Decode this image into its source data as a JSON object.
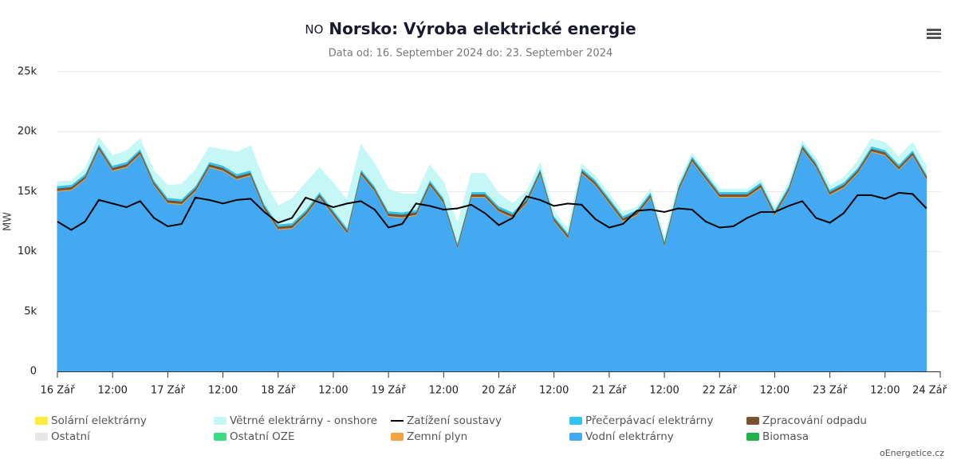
{
  "chart_data": {
    "type": "stacked_area",
    "title_code": "NO",
    "title": "Norsko: Výroba elektrické energie",
    "subtitle": "Data od: 16. September 2024 do: 23. September 2024",
    "ylabel": "MW",
    "credit": "oEnergetice.cz",
    "ylim": [
      0,
      25000
    ],
    "yticks": [
      0,
      {
        "value": 5000,
        "label": "5k"
      },
      {
        "value": 10000,
        "label": "10k"
      },
      {
        "value": 15000,
        "label": "15k"
      },
      {
        "value": 20000,
        "label": "20k"
      },
      {
        "value": 25000,
        "label": "25k"
      }
    ],
    "xlim": [
      "2024-09-16 00:00",
      "2024-09-24 00:00"
    ],
    "xticks": [
      {
        "value": "2024-09-16 00:00",
        "label": "16 Zář"
      },
      {
        "value": "2024-09-16 12:00",
        "label": "12:00"
      },
      {
        "value": "2024-09-17 00:00",
        "label": "17 Zář"
      },
      {
        "value": "2024-09-17 12:00",
        "label": "12:00"
      },
      {
        "value": "2024-09-18 00:00",
        "label": "18 Zář"
      },
      {
        "value": "2024-09-18 12:00",
        "label": "12:00"
      },
      {
        "value": "2024-09-19 00:00",
        "label": "19 Zář"
      },
      {
        "value": "2024-09-19 12:00",
        "label": "12:00"
      },
      {
        "value": "2024-09-20 00:00",
        "label": "20 Zář"
      },
      {
        "value": "2024-09-20 12:00",
        "label": "12:00"
      },
      {
        "value": "2024-09-21 00:00",
        "label": "21 Zář"
      },
      {
        "value": "2024-09-21 12:00",
        "label": "12:00"
      },
      {
        "value": "2024-09-22 00:00",
        "label": "22 Zář"
      },
      {
        "value": "2024-09-22 12:00",
        "label": "12:00"
      },
      {
        "value": "2024-09-23 00:00",
        "label": "23 Zář"
      },
      {
        "value": "2024-09-23 12:00",
        "label": "12:00"
      },
      {
        "value": "2024-09-24 00:00",
        "label": "24 Zář"
      }
    ],
    "grid": true,
    "x": [
      "2024-09-16 00:00",
      "2024-09-16 03:00",
      "2024-09-16 06:00",
      "2024-09-16 09:00",
      "2024-09-16 12:00",
      "2024-09-16 15:00",
      "2024-09-16 18:00",
      "2024-09-16 21:00",
      "2024-09-17 00:00",
      "2024-09-17 03:00",
      "2024-09-17 06:00",
      "2024-09-17 09:00",
      "2024-09-17 12:00",
      "2024-09-17 15:00",
      "2024-09-17 18:00",
      "2024-09-17 21:00",
      "2024-09-18 00:00",
      "2024-09-18 03:00",
      "2024-09-18 06:00",
      "2024-09-18 09:00",
      "2024-09-18 12:00",
      "2024-09-18 15:00",
      "2024-09-18 18:00",
      "2024-09-18 21:00",
      "2024-09-19 00:00",
      "2024-09-19 03:00",
      "2024-09-19 06:00",
      "2024-09-19 09:00",
      "2024-09-19 12:00",
      "2024-09-19 15:00",
      "2024-09-19 18:00",
      "2024-09-19 21:00",
      "2024-09-20 00:00",
      "2024-09-20 03:00",
      "2024-09-20 06:00",
      "2024-09-20 09:00",
      "2024-09-20 12:00",
      "2024-09-20 15:00",
      "2024-09-20 18:00",
      "2024-09-20 21:00",
      "2024-09-21 00:00",
      "2024-09-21 03:00",
      "2024-09-21 06:00",
      "2024-09-21 09:00",
      "2024-09-21 12:00",
      "2024-09-21 15:00",
      "2024-09-21 18:00",
      "2024-09-21 21:00",
      "2024-09-22 00:00",
      "2024-09-22 03:00",
      "2024-09-22 06:00",
      "2024-09-22 09:00",
      "2024-09-22 12:00",
      "2024-09-22 15:00",
      "2024-09-22 18:00",
      "2024-09-22 21:00",
      "2024-09-23 00:00",
      "2024-09-23 03:00",
      "2024-09-23 06:00",
      "2024-09-23 09:00",
      "2024-09-23 12:00",
      "2024-09-23 15:00",
      "2024-09-23 18:00",
      "2024-09-23 21:00"
    ],
    "series": [
      {
        "name": "Solární elektrárny",
        "color": "#ffeb3b",
        "kind": "area",
        "values": [
          0,
          0,
          0,
          0,
          0,
          0,
          0,
          0,
          0,
          0,
          0,
          0,
          0,
          0,
          0,
          0,
          0,
          0,
          0,
          0,
          0,
          0,
          0,
          0,
          0,
          0,
          0,
          0,
          0,
          0,
          0,
          0,
          0,
          0,
          0,
          0,
          0,
          0,
          0,
          0,
          0,
          0,
          0,
          0,
          0,
          0,
          0,
          0,
          0,
          0,
          0,
          0,
          0,
          0,
          0,
          0,
          0,
          0,
          0,
          0,
          0,
          0,
          0,
          0
        ]
      },
      {
        "name": "Větrné elektrárny - onshore",
        "color": "#c4f7f5",
        "kind": "area",
        "values": [
          300,
          300,
          400,
          500,
          800,
          900,
          800,
          700,
          1000,
          1200,
          1300,
          1200,
          1300,
          1800,
          2000,
          1800,
          1500,
          2000,
          2200,
          2000,
          2200,
          2300,
          2000,
          1800,
          1800,
          1500,
          1300,
          1200,
          1300,
          1500,
          1500,
          1500,
          1000,
          700,
          500,
          400,
          300,
          300,
          300,
          300,
          300,
          300,
          200,
          200,
          200,
          200,
          200,
          200,
          200,
          200,
          200,
          200,
          200,
          200,
          200,
          300,
          300,
          400,
          500,
          600,
          600,
          600,
          600,
          600
        ]
      },
      {
        "name": "Zatížení soustavy",
        "color": "#000000",
        "kind": "line",
        "values": [
          12500,
          11800,
          12500,
          14300,
          14000,
          13700,
          14200,
          12800,
          12100,
          12300,
          14500,
          14300,
          14000,
          14300,
          14400,
          13300,
          12400,
          12800,
          14500,
          14100,
          13700,
          14000,
          14200,
          13500,
          12000,
          12300,
          14000,
          13800,
          13500,
          13600,
          13900,
          13200,
          12200,
          12800,
          14600,
          14300,
          13800,
          14000,
          13900,
          12700,
          12000,
          12300,
          13400,
          13500,
          13300,
          13600,
          13500,
          12500,
          12000,
          12100,
          12800,
          13300,
          13300,
          13800,
          14200,
          12800,
          12400,
          13200,
          14700,
          14700,
          14400,
          14900,
          14800,
          13600
        ]
      },
      {
        "name": "Přečerpávací elektrárny",
        "color": "#33c3f0",
        "kind": "area",
        "values": [
          200,
          200,
          200,
          200,
          200,
          200,
          200,
          200,
          200,
          200,
          200,
          200,
          200,
          200,
          200,
          200,
          200,
          200,
          200,
          200,
          200,
          200,
          200,
          200,
          200,
          200,
          200,
          200,
          200,
          200,
          200,
          200,
          200,
          200,
          200,
          200,
          200,
          200,
          200,
          200,
          200,
          200,
          200,
          200,
          200,
          200,
          200,
          200,
          200,
          200,
          200,
          200,
          200,
          200,
          200,
          200,
          200,
          200,
          200,
          200,
          200,
          200,
          200,
          200
        ]
      },
      {
        "name": "Zpracování odpadu",
        "color": "#7a5230",
        "kind": "area",
        "values": [
          200,
          200,
          200,
          200,
          200,
          200,
          200,
          200,
          200,
          200,
          200,
          200,
          200,
          200,
          200,
          200,
          200,
          200,
          200,
          200,
          200,
          200,
          200,
          200,
          200,
          200,
          200,
          200,
          200,
          200,
          200,
          200,
          200,
          200,
          200,
          200,
          200,
          200,
          200,
          200,
          200,
          200,
          200,
          200,
          200,
          200,
          200,
          200,
          200,
          200,
          200,
          200,
          200,
          200,
          200,
          200,
          200,
          200,
          200,
          200,
          200,
          200,
          200,
          200
        ]
      },
      {
        "name": "Ostatní",
        "color": "#e6e6e6",
        "kind": "area",
        "values": [
          0,
          0,
          0,
          0,
          0,
          0,
          0,
          0,
          0,
          0,
          0,
          0,
          0,
          0,
          0,
          0,
          0,
          0,
          0,
          0,
          0,
          0,
          0,
          0,
          0,
          0,
          0,
          0,
          0,
          0,
          0,
          0,
          0,
          0,
          0,
          0,
          0,
          0,
          0,
          0,
          0,
          0,
          0,
          0,
          0,
          0,
          0,
          0,
          0,
          0,
          0,
          0,
          0,
          0,
          0,
          0,
          0,
          0,
          0,
          0,
          0,
          0,
          0,
          0
        ]
      },
      {
        "name": "Ostatní OZE",
        "color": "#3ddc84",
        "kind": "area",
        "values": [
          0,
          0,
          0,
          0,
          0,
          0,
          0,
          0,
          0,
          0,
          0,
          0,
          0,
          0,
          0,
          0,
          0,
          0,
          0,
          0,
          0,
          0,
          0,
          0,
          0,
          0,
          0,
          0,
          0,
          0,
          0,
          0,
          0,
          0,
          0,
          0,
          0,
          0,
          0,
          0,
          0,
          0,
          0,
          0,
          0,
          0,
          0,
          0,
          0,
          0,
          0,
          0,
          0,
          0,
          0,
          0,
          0,
          0,
          0,
          0,
          0,
          0,
          0,
          0
        ]
      },
      {
        "name": "Zemní plyn",
        "color": "#f4a340",
        "kind": "area",
        "values": [
          80,
          80,
          80,
          80,
          80,
          80,
          80,
          80,
          80,
          80,
          80,
          80,
          80,
          80,
          80,
          80,
          80,
          80,
          80,
          80,
          80,
          80,
          80,
          80,
          80,
          80,
          80,
          80,
          80,
          80,
          80,
          80,
          80,
          80,
          80,
          80,
          80,
          80,
          80,
          80,
          80,
          80,
          80,
          80,
          80,
          80,
          80,
          80,
          80,
          80,
          80,
          80,
          80,
          80,
          80,
          80,
          80,
          80,
          80,
          80,
          80,
          80,
          80,
          80
        ]
      },
      {
        "name": "Vodní elektrárny",
        "color": "#42a9f2",
        "kind": "area",
        "values": [
          15000,
          15100,
          16000,
          18500,
          16700,
          17000,
          18100,
          15500,
          14000,
          13900,
          15000,
          17000,
          16700,
          16000,
          16300,
          13500,
          11800,
          11900,
          13000,
          14500,
          13000,
          11500,
          16400,
          15000,
          12900,
          12800,
          13000,
          15500,
          14000,
          10300,
          14500,
          14500,
          13300,
          12800,
          14000,
          16500,
          12500,
          11100,
          16500,
          15500,
          14000,
          12500,
          13000,
          14500,
          10500,
          15000,
          17500,
          16000,
          14500,
          14500,
          14500,
          15300,
          13000,
          15000,
          18500,
          17000,
          14700,
          15300,
          16500,
          18300,
          18000,
          16800,
          18000,
          16000
        ]
      },
      {
        "name": "Biomasa",
        "color": "#22b14c",
        "kind": "area",
        "values": [
          20,
          20,
          20,
          20,
          20,
          20,
          20,
          20,
          20,
          20,
          20,
          20,
          20,
          20,
          20,
          20,
          20,
          20,
          20,
          20,
          20,
          20,
          20,
          20,
          20,
          20,
          20,
          20,
          20,
          20,
          20,
          20,
          20,
          20,
          20,
          20,
          20,
          20,
          20,
          20,
          20,
          20,
          20,
          20,
          20,
          20,
          20,
          20,
          20,
          20,
          20,
          20,
          20,
          20,
          20,
          20,
          20,
          20,
          20,
          20,
          20,
          20,
          20,
          20
        ]
      }
    ]
  }
}
